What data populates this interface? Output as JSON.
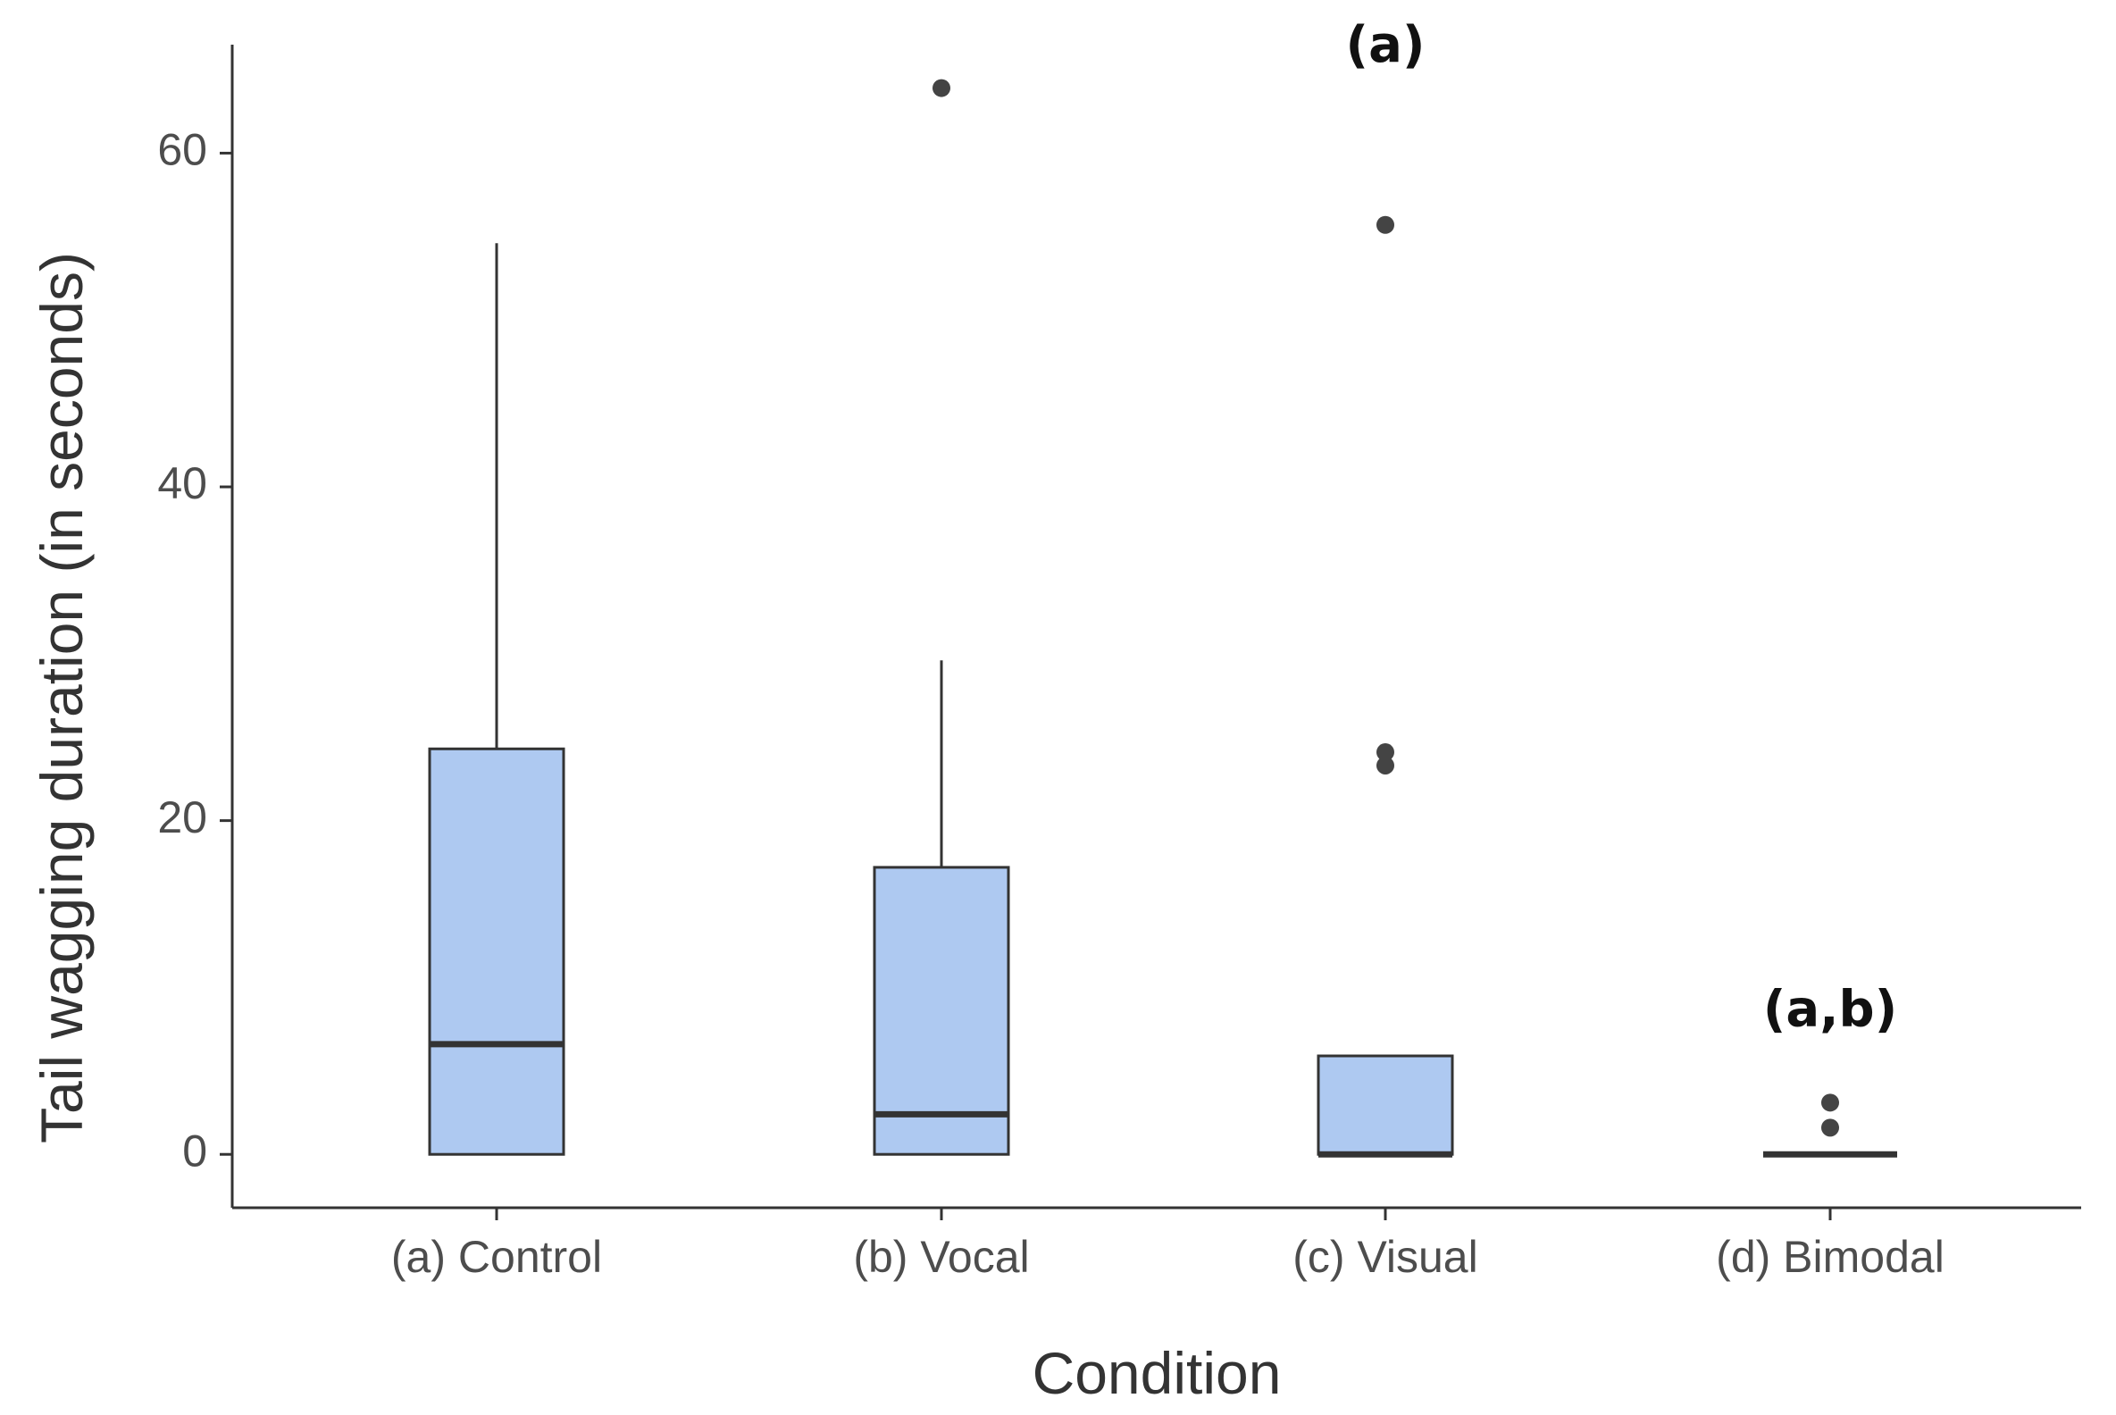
{
  "chart_data": {
    "type": "boxplot",
    "xlabel": "Condition",
    "ylabel": "Tail wagging duration (in seconds)",
    "ylim": [
      -3.2,
      66.5
    ],
    "yticks": [
      0,
      20,
      40,
      60
    ],
    "grid": false,
    "colors": {
      "box_fill": "#aec9f1",
      "stroke": "#333333",
      "point": "#444444",
      "axis": "#333333"
    },
    "categories": [
      "(a) Control",
      "(b) Vocal",
      "(c) Visual",
      "(d) Bimodal"
    ],
    "boxes": [
      {
        "name": "(a) Control",
        "min": 0,
        "q1": 0,
        "median": 6.6,
        "q3": 24.3,
        "max": 54.6,
        "outliers": []
      },
      {
        "name": "(b) Vocal",
        "min": 0,
        "q1": 0,
        "median": 2.4,
        "q3": 17.2,
        "max": 29.6,
        "outliers": [
          63.9
        ]
      },
      {
        "name": "(c) Visual",
        "min": 0,
        "q1": 0,
        "median": 0,
        "q3": 5.9,
        "max": 5.9,
        "outliers": [
          55.7,
          24.1,
          23.3
        ]
      },
      {
        "name": "(d) Bimodal",
        "min": 0,
        "q1": 0,
        "median": 0,
        "q3": 0,
        "max": 0,
        "outliers": [
          3.1,
          1.6
        ]
      }
    ],
    "annotations": [
      {
        "category": "(c) Visual",
        "text": "(a)",
        "y": 66.3
      },
      {
        "category": "(d) Bimodal",
        "text": "(a,b)",
        "y": 8.5
      }
    ]
  }
}
